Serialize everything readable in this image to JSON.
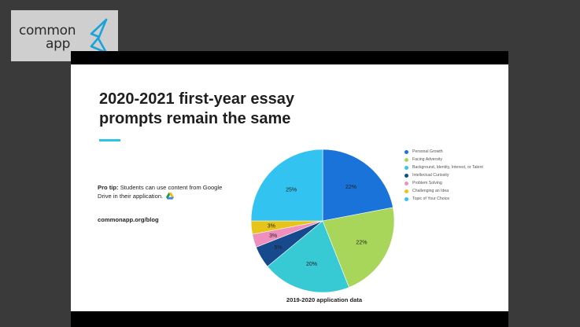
{
  "logo": {
    "line1": "common",
    "line2": "app"
  },
  "slide": {
    "title": "2020-2021 first-year essay prompts remain the same",
    "pro_tip_label": "Pro tip:",
    "pro_tip_text": "Students can use content from Google Drive in their application.",
    "blog": "commonapp.org/blog"
  },
  "colors": {
    "accent": "#2ec4e6",
    "logo_mark": "#1aa3d9"
  },
  "chart_data": {
    "type": "pie",
    "caption": "2019-2020 application data",
    "legend_position": "right",
    "slices": [
      {
        "label": "Personal Growth",
        "value": 22,
        "display": "22%",
        "color": "#1a73d9"
      },
      {
        "label": "Facing Adversity",
        "value": 22,
        "display": "22%",
        "color": "#a8d65a"
      },
      {
        "label": "Background, Identity, Interest, or Talent",
        "value": 20,
        "display": "20%",
        "color": "#37c9d4"
      },
      {
        "label": "Intellectual Curiosity",
        "value": 5,
        "display": "5%",
        "color": "#174a8c"
      },
      {
        "label": "Problem Solving",
        "value": 3,
        "display": "3%",
        "color": "#ef8fbd"
      },
      {
        "label": "Challenging an Idea",
        "value": 3,
        "display": "3%",
        "color": "#e6c41a"
      },
      {
        "label": "Topic of Your Choice",
        "value": 25,
        "display": "25%",
        "color": "#33c3f0"
      }
    ]
  }
}
